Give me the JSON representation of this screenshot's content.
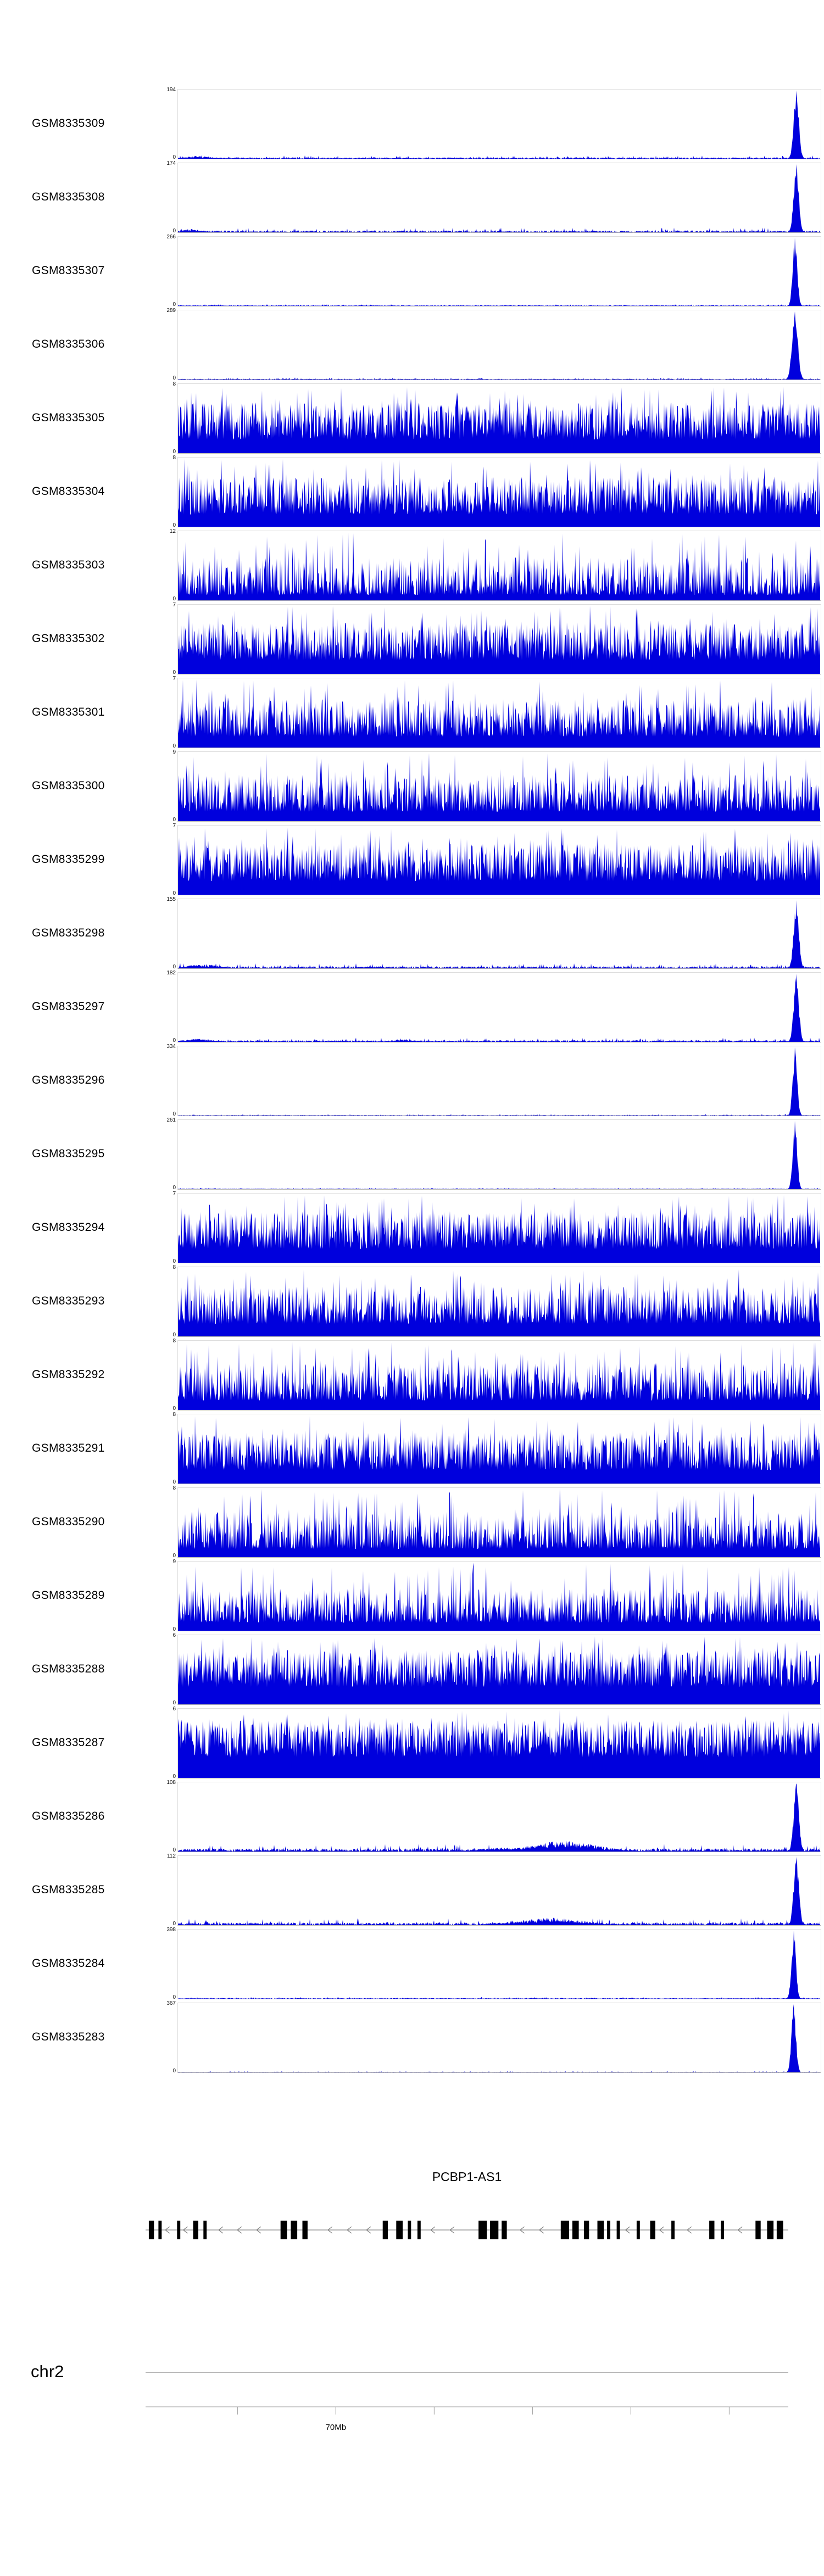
{
  "chart_data": {
    "type": "area",
    "description": "Genome browser coverage tracks (27 GEO samples) over a region of chromosome 2 containing PCBP1-AS1; filled blue signal histograms, per-track y-axis from 0 to ymax",
    "signal_color": "#0000dd",
    "legend_position": "none",
    "grid": false,
    "tracks": [
      {
        "label": "GSM8335309",
        "ymin": 0,
        "ymax": 194,
        "profile": "peak",
        "baseline": 0.02,
        "peak": {
          "x": 0.962,
          "w": 0.008
        },
        "bumps": [
          {
            "x": 0.03,
            "w": 0.04,
            "h": 0.04
          }
        ]
      },
      {
        "label": "GSM8335308",
        "ymin": 0,
        "ymax": 174,
        "profile": "peak",
        "baseline": 0.028,
        "peak": {
          "x": 0.962,
          "w": 0.008
        },
        "bumps": [
          {
            "x": 0.02,
            "w": 0.03,
            "h": 0.05
          }
        ]
      },
      {
        "label": "GSM8335307",
        "ymin": 0,
        "ymax": 266,
        "profile": "peak",
        "baseline": 0.01,
        "peak": {
          "x": 0.96,
          "w": 0.007
        },
        "bumps": []
      },
      {
        "label": "GSM8335306",
        "ymin": 0,
        "ymax": 289,
        "profile": "peak",
        "baseline": 0.012,
        "peak": {
          "x": 0.96,
          "w": 0.009
        },
        "bumps": []
      },
      {
        "label": "GSM8335305",
        "ymin": 0,
        "ymax": 8,
        "profile": "dense",
        "base": 0.2,
        "amp": 0.55,
        "pow": 1.3
      },
      {
        "label": "GSM8335304",
        "ymin": 0,
        "ymax": 8,
        "profile": "dense",
        "base": 0.18,
        "amp": 0.55,
        "pow": 1.3
      },
      {
        "label": "GSM8335303",
        "ymin": 0,
        "ymax": 12,
        "profile": "dense",
        "base": 0.08,
        "amp": 0.55,
        "pow": 2.0
      },
      {
        "label": "GSM8335302",
        "ymin": 0,
        "ymax": 7,
        "profile": "dense",
        "base": 0.2,
        "amp": 0.55,
        "pow": 1.3
      },
      {
        "label": "GSM8335301",
        "ymin": 0,
        "ymax": 7,
        "profile": "dense",
        "base": 0.16,
        "amp": 0.55,
        "pow": 1.5
      },
      {
        "label": "GSM8335300",
        "ymin": 0,
        "ymax": 9,
        "profile": "dense",
        "base": 0.14,
        "amp": 0.55,
        "pow": 1.6
      },
      {
        "label": "GSM8335299",
        "ymin": 0,
        "ymax": 7,
        "profile": "dense",
        "base": 0.2,
        "amp": 0.55,
        "pow": 1.3
      },
      {
        "label": "GSM8335298",
        "ymin": 0,
        "ymax": 155,
        "profile": "peak",
        "baseline": 0.03,
        "peak": {
          "x": 0.962,
          "w": 0.008
        },
        "bumps": [
          {
            "x": 0.04,
            "w": 0.05,
            "h": 0.06
          },
          {
            "x": 0.3,
            "w": 0.04,
            "h": 0.03
          }
        ]
      },
      {
        "label": "GSM8335297",
        "ymin": 0,
        "ymax": 182,
        "profile": "peak",
        "baseline": 0.025,
        "peak": {
          "x": 0.962,
          "w": 0.008
        },
        "bumps": [
          {
            "x": 0.03,
            "w": 0.04,
            "h": 0.05
          },
          {
            "x": 0.35,
            "w": 0.03,
            "h": 0.04
          }
        ]
      },
      {
        "label": "GSM8335296",
        "ymin": 0,
        "ymax": 334,
        "profile": "peak",
        "baseline": 0.008,
        "peak": {
          "x": 0.96,
          "w": 0.007
        },
        "bumps": []
      },
      {
        "label": "GSM8335295",
        "ymin": 0,
        "ymax": 261,
        "profile": "peak",
        "baseline": 0.008,
        "peak": {
          "x": 0.96,
          "w": 0.007
        },
        "bumps": []
      },
      {
        "label": "GSM8335294",
        "ymin": 0,
        "ymax": 7,
        "profile": "dense",
        "base": 0.2,
        "amp": 0.55,
        "pow": 1.3
      },
      {
        "label": "GSM8335293",
        "ymin": 0,
        "ymax": 8,
        "profile": "dense",
        "base": 0.18,
        "amp": 0.55,
        "pow": 1.4
      },
      {
        "label": "GSM8335292",
        "ymin": 0,
        "ymax": 8,
        "profile": "dense",
        "base": 0.14,
        "amp": 0.55,
        "pow": 1.7
      },
      {
        "label": "GSM8335291",
        "ymin": 0,
        "ymax": 8,
        "profile": "dense",
        "base": 0.2,
        "amp": 0.55,
        "pow": 1.3
      },
      {
        "label": "GSM8335290",
        "ymin": 0,
        "ymax": 8,
        "profile": "dense",
        "base": 0.12,
        "amp": 0.55,
        "pow": 1.8
      },
      {
        "label": "GSM8335289",
        "ymin": 0,
        "ymax": 9,
        "profile": "dense",
        "base": 0.12,
        "amp": 0.5,
        "pow": 1.8
      },
      {
        "label": "GSM8335288",
        "ymin": 0,
        "ymax": 6,
        "profile": "dense",
        "base": 0.25,
        "amp": 0.55,
        "pow": 1.2
      },
      {
        "label": "GSM8335287",
        "ymin": 0,
        "ymax": 6,
        "profile": "dense",
        "base": 0.3,
        "amp": 0.55,
        "pow": 1.1
      },
      {
        "label": "GSM8335286",
        "ymin": 0,
        "ymax": 108,
        "profile": "peak",
        "baseline": 0.045,
        "peak": {
          "x": 0.962,
          "w": 0.008
        },
        "bumps": [
          {
            "x": 0.6,
            "w": 0.1,
            "h": 0.16
          },
          {
            "x": 0.5,
            "w": 0.06,
            "h": 0.06
          }
        ]
      },
      {
        "label": "GSM8335285",
        "ymin": 0,
        "ymax": 112,
        "profile": "peak",
        "baseline": 0.04,
        "peak": {
          "x": 0.962,
          "w": 0.008
        },
        "bumps": [
          {
            "x": 0.58,
            "w": 0.1,
            "h": 0.11
          }
        ]
      },
      {
        "label": "GSM8335284",
        "ymin": 0,
        "ymax": 398,
        "profile": "peak",
        "baseline": 0.01,
        "peak": {
          "x": 0.958,
          "w": 0.007
        },
        "bumps": []
      },
      {
        "label": "GSM8335283",
        "ymin": 0,
        "ymax": 367,
        "profile": "peak",
        "baseline": 0.008,
        "peak": {
          "x": 0.958,
          "w": 0.007
        },
        "bumps": []
      }
    ],
    "gene": {
      "name": "PCBP1-AS1",
      "strand": "minus",
      "exons": [
        [
          0.005,
          0.008
        ],
        [
          0.02,
          0.005
        ],
        [
          0.049,
          0.005
        ],
        [
          0.074,
          0.008
        ],
        [
          0.09,
          0.005
        ],
        [
          0.21,
          0.01
        ],
        [
          0.226,
          0.01
        ],
        [
          0.244,
          0.008
        ],
        [
          0.369,
          0.008
        ],
        [
          0.39,
          0.01
        ],
        [
          0.408,
          0.005
        ],
        [
          0.423,
          0.005
        ],
        [
          0.518,
          0.013
        ],
        [
          0.536,
          0.013
        ],
        [
          0.554,
          0.008
        ],
        [
          0.646,
          0.013
        ],
        [
          0.664,
          0.01
        ],
        [
          0.682,
          0.008
        ],
        [
          0.703,
          0.01
        ],
        [
          0.718,
          0.005
        ],
        [
          0.733,
          0.005
        ],
        [
          0.764,
          0.005
        ],
        [
          0.785,
          0.008
        ],
        [
          0.818,
          0.005
        ],
        [
          0.877,
          0.008
        ],
        [
          0.895,
          0.005
        ],
        [
          0.949,
          0.008
        ],
        [
          0.967,
          0.01
        ],
        [
          0.982,
          0.01
        ]
      ],
      "arrows": [
        0.034,
        0.062,
        0.117,
        0.146,
        0.176,
        0.287,
        0.317,
        0.347,
        0.447,
        0.477,
        0.586,
        0.616,
        0.75,
        0.803,
        0.846,
        0.925
      ]
    },
    "chromosome": {
      "name": "chr2",
      "ticks": [
        0.143,
        0.296,
        0.449,
        0.602,
        0.755,
        0.908
      ],
      "labeled_tick_index": 1,
      "tick_label": "70Mb"
    }
  }
}
